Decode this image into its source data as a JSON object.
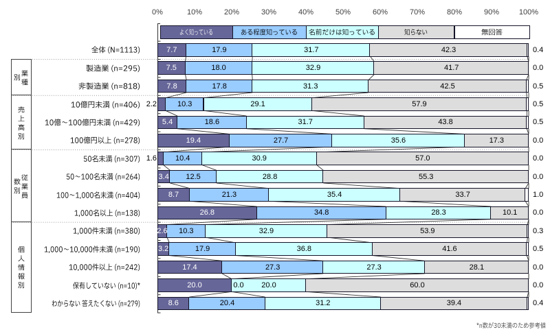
{
  "chart_data": {
    "type": "bar",
    "orientation": "horizontal",
    "stacked": true,
    "unit": "%",
    "title": "",
    "x_axis": {
      "position": "top",
      "min": 0,
      "max": 100,
      "tick_labels": [
        "0%",
        "10%",
        "20%",
        "30%",
        "40%",
        "50%",
        "60%",
        "70%",
        "80%",
        "90%",
        "100%"
      ]
    },
    "legend": {
      "position": "top"
    },
    "series": [
      {
        "name": "よく知っている",
        "color": "#666699",
        "label_color": "#ffffff"
      },
      {
        "name": "ある程度知っている",
        "color": "#99CCFF",
        "label_color": "#000000"
      },
      {
        "name": "名前だけは知っている",
        "color": "#CCFFFF",
        "label_color": "#000000"
      },
      {
        "name": "知らない",
        "color": "#DDDDDD",
        "label_color": "#000000"
      },
      {
        "name": "無回答",
        "color": "#FFFFFF",
        "label_color": "#000000",
        "labels_outside_right": true
      }
    ],
    "groups": [
      {
        "label": "",
        "rows": [
          {
            "label": "全体 (N=1113)",
            "values": [
              7.7,
              17.9,
              31.7,
              42.3,
              0.4
            ]
          }
        ]
      },
      {
        "label": "業種別",
        "rows": [
          {
            "label": "製造業 (n=295)",
            "values": [
              7.5,
              18.0,
              32.9,
              41.7,
              0.0
            ]
          },
          {
            "label": "非製造業 (n=818)",
            "values": [
              7.8,
              17.8,
              31.3,
              42.5,
              0.5
            ]
          }
        ]
      },
      {
        "label": "売上高別",
        "rows": [
          {
            "label": "10億円未満 (n=406)",
            "values": [
              2.2,
              10.3,
              29.1,
              57.9,
              0.5
            ],
            "first_label_outside": true
          },
          {
            "label": "10億〜100億円未満 (n=429)",
            "values": [
              5.4,
              18.6,
              31.7,
              43.8,
              0.5
            ]
          },
          {
            "label": "100億円以上 (n=278)",
            "values": [
              19.4,
              27.7,
              35.6,
              17.3,
              0.0
            ]
          }
        ]
      },
      {
        "label": "従業員数別",
        "rows": [
          {
            "label": "50名未満 (n=307)",
            "values": [
              1.6,
              10.4,
              30.9,
              57.0,
              0.0
            ],
            "first_label_outside": true
          },
          {
            "label": "50〜100名未満 (n=264)",
            "values": [
              3.4,
              12.5,
              28.8,
              55.3,
              0.0
            ]
          },
          {
            "label": "100〜1,000名未満 (n=404)",
            "values": [
              8.7,
              21.3,
              35.4,
              33.7,
              1.0
            ]
          },
          {
            "label": "1,000名以上 (n=138)",
            "values": [
              26.8,
              34.8,
              28.3,
              10.1,
              0.0
            ]
          }
        ]
      },
      {
        "label": "個人情報別",
        "rows": [
          {
            "label": "1,000件未満 (n=380)",
            "values": [
              2.6,
              10.3,
              32.9,
              53.9,
              0.3
            ]
          },
          {
            "label": "1,000〜10,000件未満 (n=190)",
            "values": [
              3.2,
              17.9,
              36.8,
              41.6,
              0.5
            ]
          },
          {
            "label": "10,000件以上 (n=242)",
            "values": [
              17.4,
              27.3,
              27.3,
              28.1,
              0.0
            ]
          },
          {
            "label": "保有していない (n=10)*",
            "values": [
              20.0,
              0.0,
              20.0,
              60.0,
              0.0
            ]
          },
          {
            "label": "わからない 答えたくない (n=279)",
            "values": [
              8.6,
              20.4,
              31.2,
              39.4,
              0.4
            ]
          }
        ]
      }
    ],
    "footnote": "*n数が30未満のため参考値"
  }
}
